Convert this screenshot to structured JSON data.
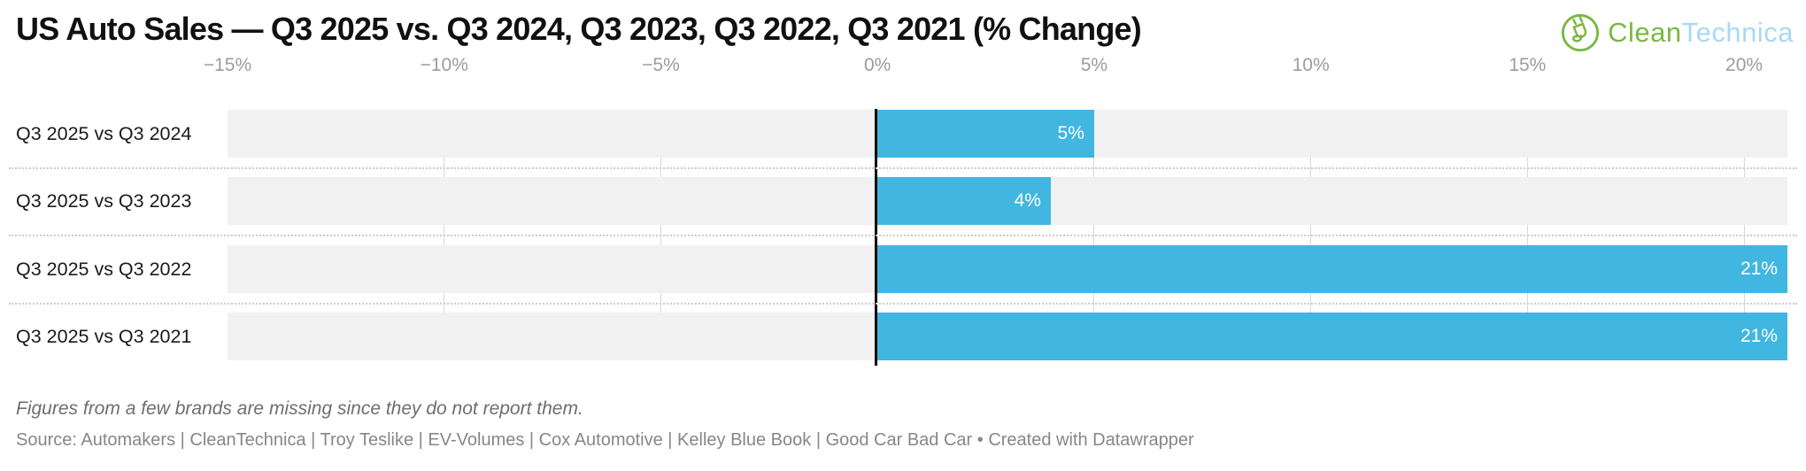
{
  "header": {
    "title": "US Auto Sales — Q3 2025 vs. Q3 2024, Q3 2023, Q3 2022, Q3 2021 (% Change)",
    "logo": {
      "icon": "plug-in-circle-icon",
      "text_green": "Clean",
      "text_blue": "Technica",
      "color_green": "#79b843",
      "color_blue": "#a9d9f2"
    }
  },
  "chart_data": {
    "type": "bar",
    "orientation": "horizontal",
    "title": "US Auto Sales — Q3 2025 vs. Q3 2024, Q3 2023, Q3 2022, Q3 2021 (% Change)",
    "categories": [
      "Q3 2025 vs Q3 2024",
      "Q3 2025 vs Q3 2023",
      "Q3 2025 vs Q3 2022",
      "Q3 2025 vs Q3 2021"
    ],
    "values": [
      5,
      4,
      21,
      21
    ],
    "value_labels": [
      "5%",
      "4%",
      "21%",
      "21%"
    ],
    "unit": "%",
    "xlim": [
      -15,
      21
    ],
    "x_ticks": [
      {
        "value": -15,
        "label": "−15%"
      },
      {
        "value": -10,
        "label": "−10%"
      },
      {
        "value": -5,
        "label": "−5%"
      },
      {
        "value": 0,
        "label": "0%"
      },
      {
        "value": 5,
        "label": "5%"
      },
      {
        "value": 10,
        "label": "10%"
      },
      {
        "value": 15,
        "label": "15%"
      },
      {
        "value": 20,
        "label": "20%"
      }
    ],
    "gridline_values": [
      -10,
      -5,
      5,
      10,
      15,
      20
    ],
    "grid": true,
    "zero_line": true,
    "legend": "none",
    "bar_color": "#41b6e0",
    "track_color": "#f1f1f1",
    "gridline_color": "#d9d9d9",
    "zero_line_color": "#000000",
    "value_label_color": "#ffffff"
  },
  "footer": {
    "note": "Figures from a few brands are missing since they do not report them.",
    "source": "Source: Automakers | CleanTechnica | Troy Teslike | EV-Volumes | Cox Automotive | Kelley Blue Book | Good Car Bad Car • Created with Datawrapper"
  }
}
